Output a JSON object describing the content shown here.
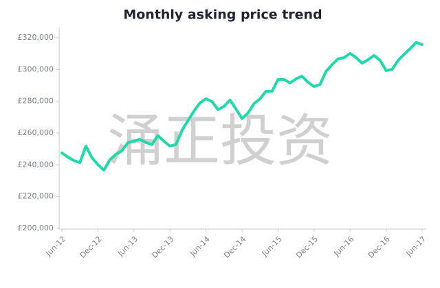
{
  "chart_data": {
    "type": "line",
    "title": "Monthly asking price trend",
    "watermark": "涌正投资",
    "categories": [
      "Jun-12",
      null,
      null,
      null,
      null,
      null,
      "Dec-12",
      null,
      null,
      null,
      null,
      null,
      "Jun-13",
      null,
      null,
      null,
      null,
      null,
      "Dec-13",
      null,
      null,
      null,
      null,
      null,
      "Jun-14",
      null,
      null,
      null,
      null,
      null,
      "Dec-14",
      null,
      null,
      null,
      null,
      null,
      "Jun-15",
      null,
      null,
      null,
      null,
      null,
      "Dec-15",
      null,
      null,
      null,
      null,
      null,
      "Jun-16",
      null,
      null,
      null,
      null,
      null,
      "Dec-16",
      null,
      null,
      null,
      null,
      null,
      "Jun-17"
    ],
    "series": [
      {
        "color": "#1ed9a9",
        "values": [
          247500,
          244900,
          242700,
          241400,
          251800,
          244500,
          240100,
          236700,
          243200,
          246600,
          248800,
          254000,
          254800,
          256100,
          254000,
          252700,
          258300,
          254800,
          251800,
          252700,
          261700,
          267800,
          273800,
          279000,
          281600,
          279800,
          274700,
          276800,
          280700,
          275100,
          269100,
          272500,
          278500,
          281600,
          286300,
          286300,
          293700,
          293700,
          291500,
          294100,
          295800,
          291900,
          289300,
          290600,
          298800,
          303100,
          306600,
          307500,
          310100,
          307500,
          304000,
          306200,
          308800,
          305700,
          299300,
          300100,
          305700,
          309600,
          313100,
          317000,
          315700
        ]
      }
    ],
    "ylim": [
      200000,
      320000
    ],
    "yticks": [
      {
        "value": 200000,
        "label": "£200,000"
      },
      {
        "value": 220000,
        "label": "£220,000"
      },
      {
        "value": 240000,
        "label": "£240,000"
      },
      {
        "value": 260000,
        "label": "£260,000"
      },
      {
        "value": 280000,
        "label": "£280,000"
      },
      {
        "value": 300000,
        "label": "£300,000"
      },
      {
        "value": 320000,
        "label": "£320,000"
      }
    ],
    "grid": false
  }
}
